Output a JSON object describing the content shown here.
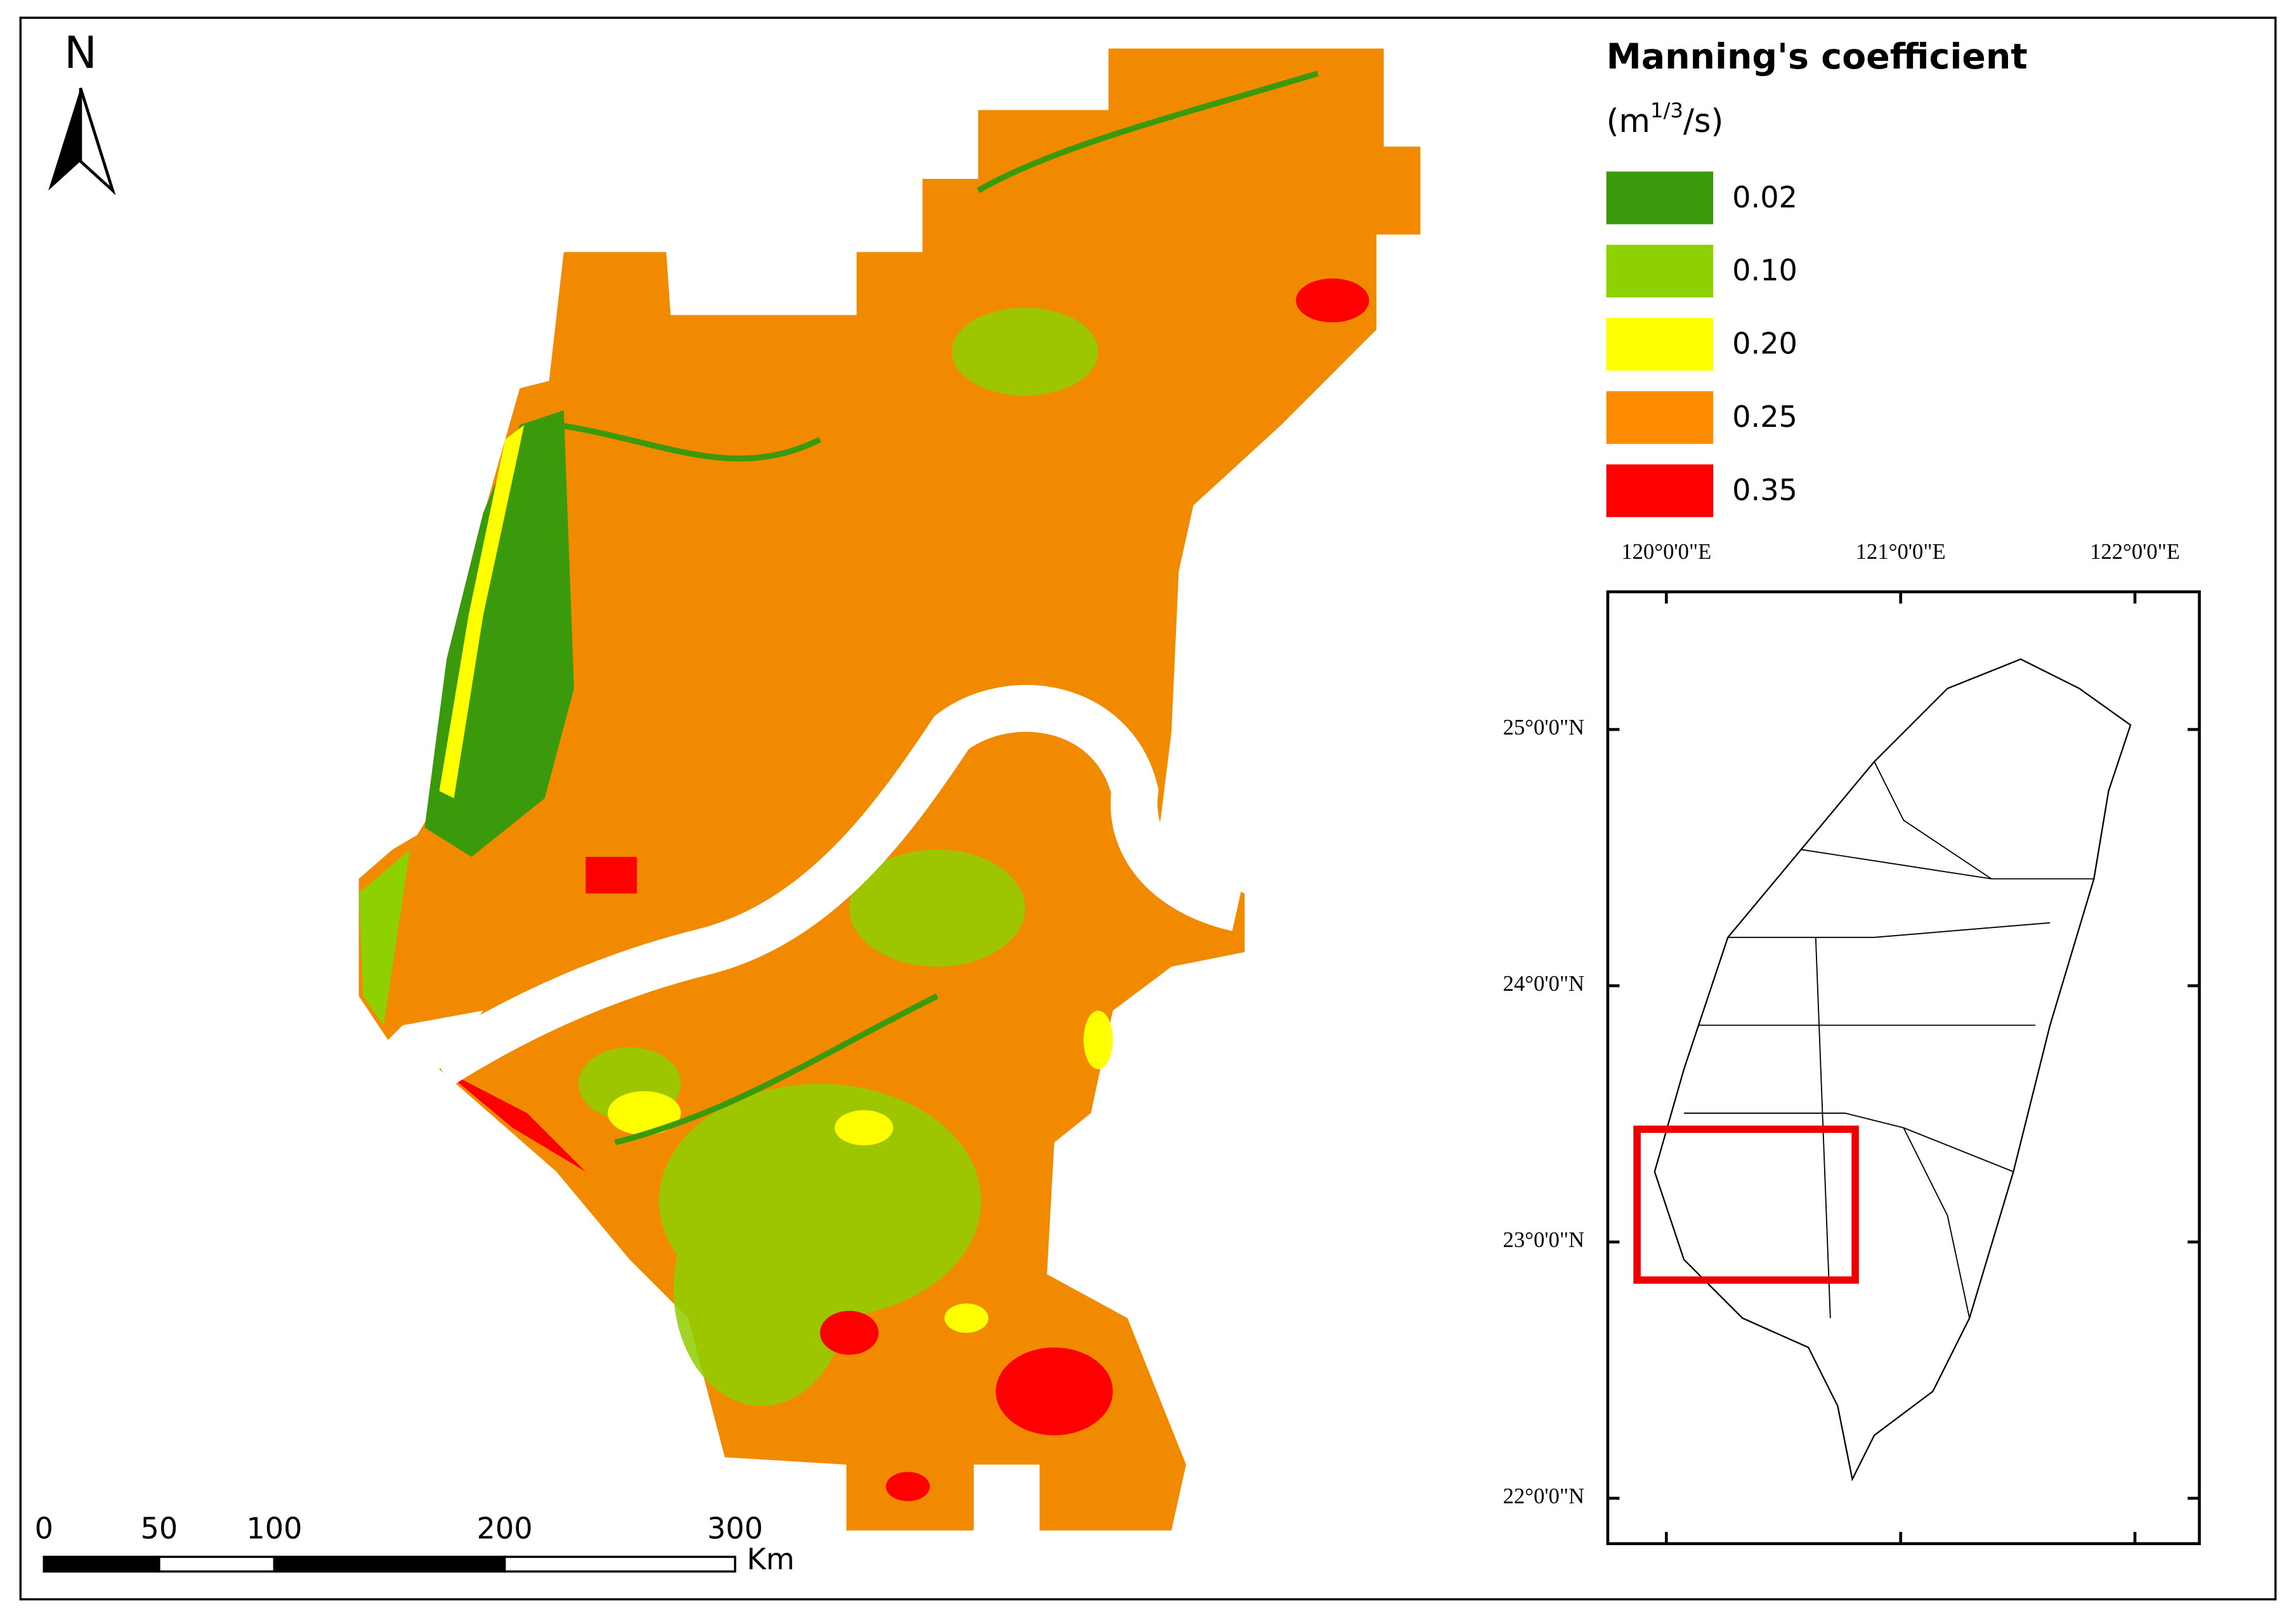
{
  "north_arrow": {
    "label": "N"
  },
  "legend": {
    "title": "Manning's coefficient",
    "unit": {
      "prefix": "(m",
      "superscript": "1/3",
      "suffix": "/s)"
    },
    "items": [
      {
        "label": "0.02",
        "color": "#3a9a0c"
      },
      {
        "label": "0.10",
        "color": "#8fd000"
      },
      {
        "label": "0.20",
        "color": "#ffff00"
      },
      {
        "label": "0.25",
        "color": "#ff8c00"
      },
      {
        "label": "0.35",
        "color": "#ff0000"
      }
    ]
  },
  "scale_bar": {
    "ticks": [
      0,
      50,
      100,
      200,
      300
    ],
    "unit": "Km"
  },
  "inset": {
    "longitudes": [
      "120°0'0\"E",
      "121°0'0\"E",
      "122°0'0\"E"
    ],
    "latitudes": [
      "25°0'0\"N",
      "24°0'0\"N",
      "23°0'0\"N",
      "22°0'0\"N"
    ]
  }
}
